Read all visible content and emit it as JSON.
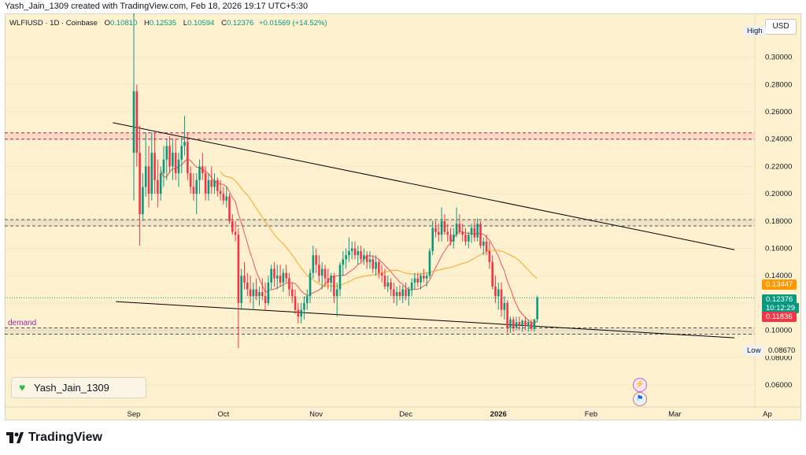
{
  "header": {
    "created_by": "Yash_Jain_1309 created with TradingView.com, Feb 18, 2026 19:17 UTC+5:30"
  },
  "legend": {
    "symbol": "WLFIUSD · 1D · Coinbase",
    "o_label": "O",
    "o": "0.10810",
    "h_label": "H",
    "h": "0.12535",
    "l_label": "L",
    "l": "0.10594",
    "c_label": "C",
    "c": "0.12376",
    "change": "+0.01569 (+14.52%)"
  },
  "currency_button": "USD",
  "high_label": "High",
  "low_label": "Low",
  "low_value": "0.08670",
  "price_tags": {
    "sma_slow": "0.13447",
    "last": "0.12376",
    "countdown": "10:12:29",
    "sma_fast": "0.11836"
  },
  "annotation": {
    "demand": "demand"
  },
  "watermark": "Yash_Jain_1309",
  "footer": "TradingView",
  "colors": {
    "up": "#089981",
    "down": "#f23645",
    "background": "#fdf1d0",
    "sma_fast": "#f23645",
    "sma_slow": "#ff9800",
    "zone": "#c2185b",
    "trendline": "#000000"
  },
  "chart_data": {
    "type": "candlestick",
    "title": "WLFIUSD · 1D · Coinbase",
    "y_axis_ticks": [
      "0.30000",
      "0.28000",
      "0.26000",
      "0.24000",
      "0.22000",
      "0.20000",
      "0.18000",
      "0.16000",
      "0.14000",
      "0.12000",
      "0.10000",
      "0.08000",
      "0.06000"
    ],
    "x_axis_ticks": [
      "Sep",
      "Oct",
      "Nov",
      "Dec",
      "2026",
      "Feb",
      "Mar",
      "Ap"
    ],
    "ylim": [
      0.04,
      0.335
    ],
    "horizontal_zones": [
      0.2423,
      0.1787,
      0.0995
    ],
    "trendlines": [
      {
        "name": "upper",
        "from": [
          "2025-08-25",
          0.252
        ],
        "to": [
          "2026-03-21",
          0.159
        ]
      },
      {
        "name": "lower",
        "from": [
          "2025-08-26",
          0.121
        ],
        "to": [
          "2026-03-21",
          0.0945
        ]
      }
    ],
    "start_date": "2025-09-01",
    "candles": [
      [
        0.23,
        0.338,
        0.195,
        0.275
      ],
      [
        0.275,
        0.28,
        0.22,
        0.23
      ],
      [
        0.23,
        0.25,
        0.162,
        0.185
      ],
      [
        0.185,
        0.215,
        0.18,
        0.205
      ],
      [
        0.205,
        0.245,
        0.198,
        0.22
      ],
      [
        0.22,
        0.235,
        0.19,
        0.2
      ],
      [
        0.2,
        0.245,
        0.195,
        0.23
      ],
      [
        0.23,
        0.245,
        0.2,
        0.21
      ],
      [
        0.21,
        0.225,
        0.19,
        0.2
      ],
      [
        0.2,
        0.22,
        0.195,
        0.215
      ],
      [
        0.215,
        0.235,
        0.205,
        0.225
      ],
      [
        0.225,
        0.24,
        0.21,
        0.235
      ],
      [
        0.235,
        0.242,
        0.215,
        0.22
      ],
      [
        0.22,
        0.24,
        0.21,
        0.23
      ],
      [
        0.23,
        0.24,
        0.21,
        0.215
      ],
      [
        0.215,
        0.23,
        0.205,
        0.225
      ],
      [
        0.225,
        0.242,
        0.215,
        0.235
      ],
      [
        0.235,
        0.257,
        0.228,
        0.238
      ],
      [
        0.238,
        0.245,
        0.21,
        0.215
      ],
      [
        0.215,
        0.22,
        0.2,
        0.205
      ],
      [
        0.205,
        0.215,
        0.195,
        0.2
      ],
      [
        0.2,
        0.215,
        0.185,
        0.21
      ],
      [
        0.21,
        0.225,
        0.2,
        0.22
      ],
      [
        0.22,
        0.23,
        0.21,
        0.215
      ],
      [
        0.215,
        0.22,
        0.195,
        0.2
      ],
      [
        0.2,
        0.215,
        0.195,
        0.21
      ],
      [
        0.21,
        0.22,
        0.2,
        0.205
      ],
      [
        0.205,
        0.215,
        0.2,
        0.21
      ],
      [
        0.21,
        0.212,
        0.198,
        0.202
      ],
      [
        0.202,
        0.21,
        0.195,
        0.2
      ],
      [
        0.2,
        0.205,
        0.192,
        0.195
      ],
      [
        0.195,
        0.205,
        0.19,
        0.198
      ],
      [
        0.198,
        0.2,
        0.178,
        0.18
      ],
      [
        0.18,
        0.185,
        0.17,
        0.172
      ],
      [
        0.172,
        0.18,
        0.165,
        0.17
      ],
      [
        0.17,
        0.175,
        0.087,
        0.12
      ],
      [
        0.12,
        0.145,
        0.115,
        0.14
      ],
      [
        0.14,
        0.15,
        0.13,
        0.135
      ],
      [
        0.135,
        0.142,
        0.125,
        0.13
      ],
      [
        0.13,
        0.14,
        0.12,
        0.125
      ],
      [
        0.125,
        0.135,
        0.115,
        0.13
      ],
      [
        0.13,
        0.138,
        0.122,
        0.125
      ],
      [
        0.125,
        0.132,
        0.118,
        0.128
      ],
      [
        0.128,
        0.138,
        0.122,
        0.125
      ],
      [
        0.125,
        0.135,
        0.115,
        0.12
      ],
      [
        0.12,
        0.14,
        0.118,
        0.135
      ],
      [
        0.135,
        0.148,
        0.13,
        0.145
      ],
      [
        0.145,
        0.15,
        0.132,
        0.138
      ],
      [
        0.138,
        0.148,
        0.13,
        0.14
      ],
      [
        0.14,
        0.148,
        0.132,
        0.135
      ],
      [
        0.135,
        0.145,
        0.128,
        0.142
      ],
      [
        0.142,
        0.148,
        0.135,
        0.138
      ],
      [
        0.138,
        0.142,
        0.125,
        0.13
      ],
      [
        0.13,
        0.135,
        0.12,
        0.125
      ],
      [
        0.125,
        0.13,
        0.112,
        0.115
      ],
      [
        0.115,
        0.12,
        0.105,
        0.11
      ],
      [
        0.11,
        0.12,
        0.105,
        0.115
      ],
      [
        0.115,
        0.125,
        0.108,
        0.12
      ],
      [
        0.12,
        0.13,
        0.115,
        0.125
      ],
      [
        0.125,
        0.145,
        0.12,
        0.142
      ],
      [
        0.142,
        0.162,
        0.138,
        0.155
      ],
      [
        0.155,
        0.16,
        0.142,
        0.148
      ],
      [
        0.148,
        0.155,
        0.135,
        0.14
      ],
      [
        0.14,
        0.15,
        0.13,
        0.145
      ],
      [
        0.145,
        0.148,
        0.132,
        0.138
      ],
      [
        0.138,
        0.145,
        0.13,
        0.135
      ],
      [
        0.135,
        0.142,
        0.128,
        0.14
      ],
      [
        0.14,
        0.142,
        0.12,
        0.125
      ],
      [
        0.125,
        0.135,
        0.11,
        0.13
      ],
      [
        0.13,
        0.15,
        0.125,
        0.148
      ],
      [
        0.148,
        0.158,
        0.14,
        0.152
      ],
      [
        0.152,
        0.16,
        0.145,
        0.155
      ],
      [
        0.155,
        0.168,
        0.15,
        0.158
      ],
      [
        0.158,
        0.165,
        0.152,
        0.16
      ],
      [
        0.16,
        0.165,
        0.152,
        0.155
      ],
      [
        0.155,
        0.162,
        0.148,
        0.158
      ],
      [
        0.158,
        0.162,
        0.15,
        0.152
      ],
      [
        0.152,
        0.16,
        0.148,
        0.155
      ],
      [
        0.155,
        0.158,
        0.145,
        0.15
      ],
      [
        0.15,
        0.158,
        0.145,
        0.152
      ],
      [
        0.152,
        0.155,
        0.142,
        0.145
      ],
      [
        0.145,
        0.155,
        0.14,
        0.15
      ],
      [
        0.15,
        0.152,
        0.138,
        0.142
      ],
      [
        0.142,
        0.148,
        0.135,
        0.14
      ],
      [
        0.14,
        0.145,
        0.13,
        0.132
      ],
      [
        0.132,
        0.14,
        0.128,
        0.135
      ],
      [
        0.135,
        0.138,
        0.125,
        0.13
      ],
      [
        0.13,
        0.135,
        0.12,
        0.125
      ],
      [
        0.125,
        0.132,
        0.118,
        0.128
      ],
      [
        0.128,
        0.133,
        0.122,
        0.125
      ],
      [
        0.125,
        0.133,
        0.12,
        0.13
      ],
      [
        0.13,
        0.135,
        0.122,
        0.125
      ],
      [
        0.125,
        0.132,
        0.118,
        0.13
      ],
      [
        0.13,
        0.138,
        0.125,
        0.135
      ],
      [
        0.135,
        0.142,
        0.13,
        0.138
      ],
      [
        0.138,
        0.142,
        0.132,
        0.135
      ],
      [
        0.135,
        0.142,
        0.13,
        0.14
      ],
      [
        0.14,
        0.145,
        0.135,
        0.138
      ],
      [
        0.138,
        0.142,
        0.132,
        0.14
      ],
      [
        0.14,
        0.16,
        0.138,
        0.158
      ],
      [
        0.158,
        0.18,
        0.155,
        0.175
      ],
      [
        0.175,
        0.18,
        0.168,
        0.172
      ],
      [
        0.172,
        0.178,
        0.165,
        0.17
      ],
      [
        0.17,
        0.19,
        0.165,
        0.18
      ],
      [
        0.18,
        0.185,
        0.17,
        0.172
      ],
      [
        0.172,
        0.178,
        0.165,
        0.17
      ],
      [
        0.17,
        0.175,
        0.162,
        0.165
      ],
      [
        0.165,
        0.175,
        0.16,
        0.17
      ],
      [
        0.17,
        0.19,
        0.168,
        0.178
      ],
      [
        0.178,
        0.185,
        0.17,
        0.172
      ],
      [
        0.172,
        0.178,
        0.165,
        0.17
      ],
      [
        0.17,
        0.175,
        0.162,
        0.165
      ],
      [
        0.165,
        0.172,
        0.16,
        0.17
      ],
      [
        0.17,
        0.178,
        0.164,
        0.175
      ],
      [
        0.175,
        0.18,
        0.165,
        0.168
      ],
      [
        0.168,
        0.182,
        0.165,
        0.178
      ],
      [
        0.178,
        0.18,
        0.16,
        0.162
      ],
      [
        0.162,
        0.168,
        0.155,
        0.165
      ],
      [
        0.165,
        0.17,
        0.155,
        0.158
      ],
      [
        0.158,
        0.165,
        0.145,
        0.15
      ],
      [
        0.15,
        0.155,
        0.13,
        0.132
      ],
      [
        0.132,
        0.14,
        0.12,
        0.125
      ],
      [
        0.125,
        0.135,
        0.115,
        0.13
      ],
      [
        0.13,
        0.135,
        0.11,
        0.115
      ],
      [
        0.115,
        0.125,
        0.108,
        0.12
      ],
      [
        0.12,
        0.122,
        0.098,
        0.102
      ],
      [
        0.102,
        0.11,
        0.098,
        0.108
      ],
      [
        0.108,
        0.11,
        0.099,
        0.102
      ],
      [
        0.102,
        0.11,
        0.1,
        0.106
      ],
      [
        0.106,
        0.11,
        0.1,
        0.104
      ],
      [
        0.104,
        0.108,
        0.099,
        0.107
      ],
      [
        0.107,
        0.11,
        0.1,
        0.103
      ],
      [
        0.103,
        0.108,
        0.099,
        0.106
      ],
      [
        0.106,
        0.108,
        0.0995,
        0.101
      ],
      [
        0.101,
        0.108,
        0.099,
        0.1081
      ],
      [
        0.1081,
        0.1254,
        0.1059,
        0.1238
      ]
    ]
  }
}
